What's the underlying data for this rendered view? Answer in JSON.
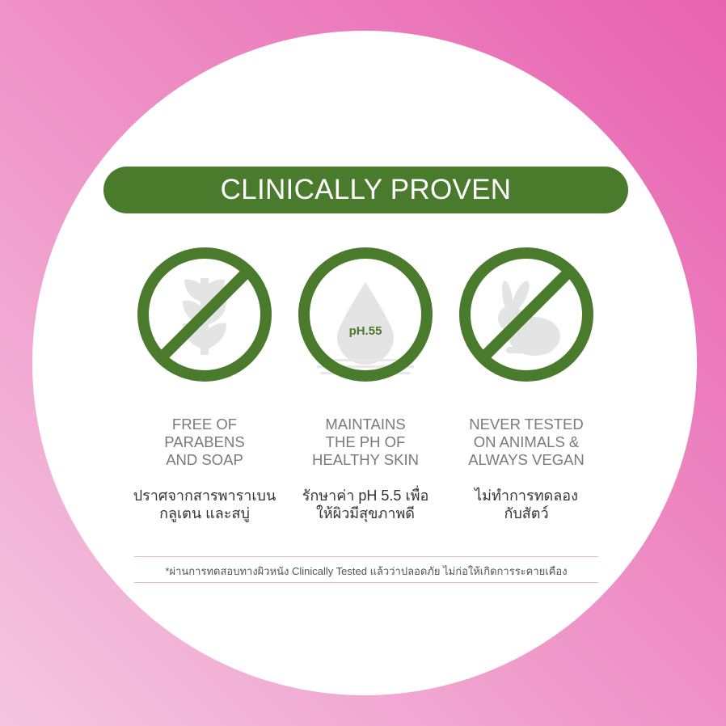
{
  "banner": {
    "title": "CLINICALLY PROVEN"
  },
  "colors": {
    "green": "#4a7a2c",
    "pink": "#e862b0",
    "icon_gray": "#e4e4e4"
  },
  "features": [
    {
      "icon": "no-parabens-leaf-icon",
      "en": [
        "FREE OF",
        "PARABENS",
        "AND SOAP"
      ],
      "th": [
        "ปราศจากสารพาราเบน",
        "กลูเตน และสบู่"
      ]
    },
    {
      "icon": "ph-drop-icon",
      "badge": "pH.55",
      "en": [
        "MAINTAINS",
        "THE PH OF",
        "HEALTHY SKIN"
      ],
      "th": [
        "รักษาค่า pH 5.5 เพื่อ",
        "ให้ผิวมีสุขภาพดี"
      ]
    },
    {
      "icon": "no-animal-testing-rabbit-icon",
      "en": [
        "NEVER TESTED",
        "ON ANIMALS &",
        "ALWAYS VEGAN"
      ],
      "th": [
        "ไม่ทำการทดลอง",
        "กับสัตว์"
      ]
    }
  ],
  "footnote": "*ผ่านการทดสอบทางผิวหนัง Clinically Tested แล้วว่าปลอดภัย ไม่ก่อให้เกิดการระคายเคือง"
}
